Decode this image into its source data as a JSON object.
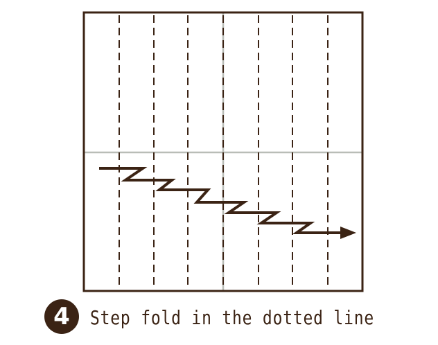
{
  "colors": {
    "outline": "#3b2314",
    "fold_line": "#3b2314",
    "crease": "#b9bdb7",
    "step_path": "#3b2314",
    "badge_bg": "#3b2314",
    "text": "#3b2314"
  },
  "paper": {
    "dotted_fold_count": 7,
    "center_creases": [
      "vertical",
      "horizontal"
    ]
  },
  "step_arrow": {
    "icon": "step-fold-arrow-icon",
    "direction": "right"
  },
  "caption": {
    "step_number": "4",
    "text": "Step fold in the dotted line"
  }
}
